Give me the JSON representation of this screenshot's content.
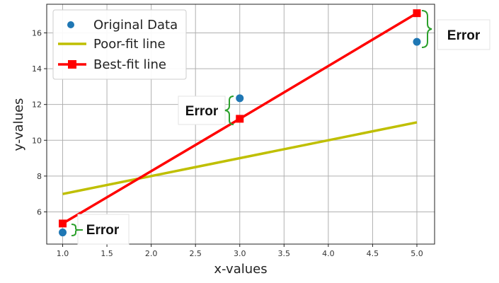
{
  "chart_data": {
    "type": "line",
    "title": "",
    "xlabel": "x-values",
    "ylabel": "y-values",
    "xlim": [
      0.82,
      5.2
    ],
    "ylim": [
      4.2,
      17.6
    ],
    "xticks": [
      1.0,
      1.5,
      2.0,
      2.5,
      3.0,
      3.5,
      4.0,
      4.5,
      5.0
    ],
    "xtick_labels": [
      "1.0",
      "1.5",
      "2.0",
      "2.5",
      "3.0",
      "3.5",
      "4.0",
      "4.5",
      "5.0"
    ],
    "yticks": [
      6,
      8,
      10,
      12,
      14,
      16
    ],
    "ytick_labels": [
      "6",
      "8",
      "10",
      "12",
      "14",
      "16"
    ],
    "grid": true,
    "legend_position": "top-left",
    "series": [
      {
        "name": "Original Data",
        "kind": "scatter",
        "color": "#1f77b4",
        "x": [
          1.0,
          3.0,
          5.0
        ],
        "y": [
          4.85,
          12.35,
          15.5
        ]
      },
      {
        "name": "Poor-fit line",
        "kind": "line",
        "color": "#bfbf00",
        "x": [
          1.0,
          5.0
        ],
        "y": [
          7.0,
          11.0
        ]
      },
      {
        "name": "Best-fit line",
        "kind": "line-marker",
        "color": "#ff0000",
        "x": [
          1.0,
          3.0,
          5.0
        ],
        "y": [
          5.35,
          11.2,
          17.1
        ]
      }
    ],
    "annotations": [
      {
        "text": "Error",
        "color": "#2ca02c"
      },
      {
        "text": "Error",
        "color": "#2ca02c"
      },
      {
        "text": "Error",
        "color": "#2ca02c"
      }
    ]
  }
}
